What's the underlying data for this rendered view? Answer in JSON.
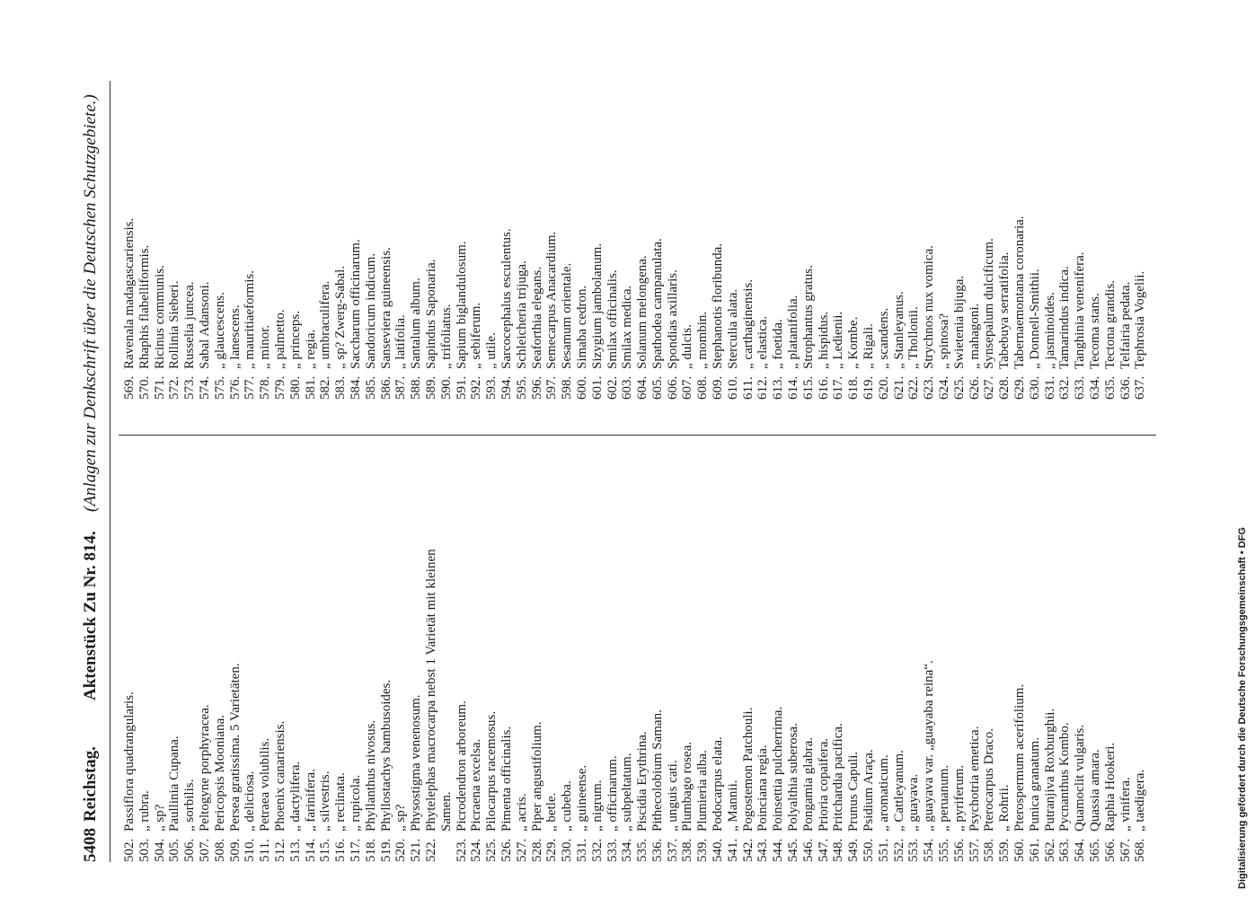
{
  "header": {
    "page_number": "5408",
    "left": "Reichstag.",
    "title": "Aktenstück Zu Nr. 814.",
    "subtitle": "(Anlagen zur Denkschrift über die Deutschen Schutzgebiete.)"
  },
  "columns": [
    {
      "entries": [
        [
          "502.",
          "Passiflora quadrangularis."
        ],
        [
          "503.",
          "„ rubra."
        ],
        [
          "504.",
          "„ sp?"
        ],
        [
          "505.",
          "Paullinia Cupana."
        ],
        [
          "506.",
          "„ sorbilis."
        ],
        [
          "507.",
          "Peltogyne porphyracea."
        ],
        [
          "508.",
          "Pericopsis Mooniana."
        ],
        [
          "509.",
          "Persea gratissima. 5 Varietäten."
        ],
        [
          "510.",
          "„ deliciosa."
        ],
        [
          "511.",
          "Petraea volubilis."
        ],
        [
          "512.",
          "Phoenix canariensis."
        ],
        [
          "513.",
          "„ dactylifera."
        ],
        [
          "514.",
          "„ farinifera."
        ],
        [
          "515.",
          "„ silvestris."
        ],
        [
          "516.",
          "„ reclinata."
        ],
        [
          "517.",
          "„ rupicola."
        ],
        [
          "518.",
          "Phyllanthus nivosus."
        ],
        [
          "519.",
          "Phyllostachys bambusoides."
        ],
        [
          "520.",
          "„ sp?"
        ],
        [
          "521.",
          "Physostigma venenosum."
        ],
        [
          "522.",
          "Phytelephas macrocarpa nebst 1 Varietät mit kleinen",
          "Samen."
        ],
        [
          "523.",
          "Picrodendron arboreum."
        ],
        [
          "524.",
          "Picraena excelsa."
        ],
        [
          "525.",
          "Pilocarpus racemosus."
        ],
        [
          "526.",
          "Pimenta officinalis."
        ],
        [
          "527.",
          "„ acris."
        ],
        [
          "528.",
          "Piper angustifolium."
        ],
        [
          "529.",
          "„ betle."
        ],
        [
          "530.",
          "„ cubeba."
        ],
        [
          "531.",
          "„ guineense."
        ],
        [
          "532.",
          "„ nigrum."
        ],
        [
          "533.",
          "„ officinarum."
        ],
        [
          "534.",
          "„ subpeltatum."
        ],
        [
          "535.",
          "Piscidia Erythrina."
        ],
        [
          "536.",
          "Pithecolobium Saman."
        ],
        [
          "537.",
          "„ unguis cati."
        ],
        [
          "538.",
          "Plumbago rosea."
        ],
        [
          "539.",
          "Plumieria alba."
        ],
        [
          "540.",
          "Podocarpus elata."
        ],
        [
          "541.",
          "„ Mannii."
        ],
        [
          "542.",
          "Pogostemon Patchouli."
        ],
        [
          "543.",
          "Poinciana regia."
        ],
        [
          "544.",
          "Poinsettia pulcherrima."
        ],
        [
          "545.",
          "Polyalthia suberosa."
        ],
        [
          "546.",
          "Pongamia glabra."
        ],
        [
          "547.",
          "Prioria copaifera."
        ],
        [
          "548.",
          "Pritchardia pacifica."
        ],
        [
          "549.",
          "Prunus Capuli."
        ],
        [
          "550.",
          "Psidium Araça."
        ],
        [
          "551.",
          "„ aromaticum."
        ],
        [
          "552.",
          "„ Cattleyanum."
        ],
        [
          "553.",
          "„ guayava."
        ],
        [
          "554.",
          "„ guayava var. „guayaba reina“."
        ],
        [
          "555.",
          "„ peruanum."
        ],
        [
          "556.",
          "„ pyriferum."
        ],
        [
          "557.",
          "Psychotria emetica."
        ],
        [
          "558.",
          "Pterocarpus Draco."
        ],
        [
          "559.",
          "„ Rohrii."
        ],
        [
          "560.",
          "Pterospermum acerifolium."
        ],
        [
          "561.",
          "Punica granatum."
        ],
        [
          "562.",
          "Putranjiva Roxburghii."
        ],
        [
          "563.",
          "Pycnanthus Kombo."
        ],
        [
          "564.",
          "Quamoclit vulgaris."
        ],
        [
          "565.",
          "Quassia amara."
        ],
        [
          "566.",
          "Raphia Hookeri."
        ],
        [
          "567.",
          "„ vinifera."
        ],
        [
          "568.",
          "„ taedigera."
        ]
      ]
    },
    {
      "entries": [
        [
          "569.",
          "Ravenala madagascariensis."
        ],
        [
          "570.",
          "Rhaphis flabelliformis."
        ],
        [
          "571.",
          "Ricinus communis."
        ],
        [
          "572.",
          "Rollinia Sieberi."
        ],
        [
          "573.",
          "Russelia juncea."
        ],
        [
          "574.",
          "Sabal Adansoni."
        ],
        [
          "575.",
          "„ glaucescens."
        ],
        [
          "576.",
          "„ lanescens."
        ],
        [
          "577.",
          "„ mauritiaeformis."
        ],
        [
          "578.",
          "„ minor."
        ],
        [
          "579.",
          "„ palmetto."
        ],
        [
          "580.",
          "„ princeps."
        ],
        [
          "581.",
          "„ regia."
        ],
        [
          "582.",
          "„ umbraculifera."
        ],
        [
          "583.",
          "„ sp? Zwerg-Sabal."
        ],
        [
          "584.",
          "Saccharum officinarum."
        ],
        [
          "585.",
          "Sandoricum indicum."
        ],
        [
          "586.",
          "Sanseviera guineensis."
        ],
        [
          "587.",
          "„ latifolia."
        ],
        [
          "588.",
          "Santalum album."
        ],
        [
          "589.",
          "Sapindus Saponaria."
        ],
        [
          "590.",
          "„ trifoliatus."
        ],
        [
          "591.",
          "Sapium biglandulosum."
        ],
        [
          "592.",
          "„ sebiferum."
        ],
        [
          "593.",
          "„ utile."
        ],
        [
          "594.",
          "Sarcocephalus esculentus."
        ],
        [
          "595.",
          "Schleicheria trijuga."
        ],
        [
          "596.",
          "Seaforthia elegans."
        ],
        [
          "597.",
          "Semecarpus Anacardium."
        ],
        [
          "598.",
          "Sesamum orientale."
        ],
        [
          "600.",
          "Simaba cedron."
        ],
        [
          "601.",
          "Sizygium jambolanum."
        ],
        [
          "602.",
          "Smilax officinalis."
        ],
        [
          "603.",
          "Smilax medica."
        ],
        [
          "604.",
          "Solanum melongena."
        ],
        [
          "605.",
          "Spathodea campanulata."
        ],
        [
          "606.",
          "Spondias axillaris."
        ],
        [
          "607.",
          "„ dulcis."
        ],
        [
          "608.",
          "„ mombin."
        ],
        [
          "609.",
          "Stephanotis floribunda."
        ],
        [
          "610.",
          "Sterculia alata."
        ],
        [
          "611.",
          "„ carthaginensis."
        ],
        [
          "612.",
          "„ elastica."
        ],
        [
          "613.",
          "„ foetida."
        ],
        [
          "614.",
          "„ platanifolia."
        ],
        [
          "615.",
          "Strophantus gratus."
        ],
        [
          "616.",
          "„ hispidus."
        ],
        [
          "617.",
          "„ Ledienii."
        ],
        [
          "618.",
          "„ Kombe."
        ],
        [
          "619.",
          "„ Rigali."
        ],
        [
          "620.",
          "„ scandens."
        ],
        [
          "621.",
          "„ Stanleyanus."
        ],
        [
          "622.",
          "„ Thollonii."
        ],
        [
          "623.",
          "Strychnos nux vomica."
        ],
        [
          "624.",
          "„ spinosa?"
        ],
        [
          "625.",
          "Swietenia bijuga."
        ],
        [
          "626.",
          "„ mahagoni."
        ],
        [
          "627.",
          "Synsepalum dulcificum."
        ],
        [
          "628.",
          "Tabebuya serratifolia."
        ],
        [
          "629.",
          "Tabernaemontana coronaria."
        ],
        [
          "630.",
          "„ Donnell-Smithii."
        ],
        [
          "631.",
          "„ jasminoides."
        ],
        [
          "632.",
          "Tamarindus indica."
        ],
        [
          "633.",
          "Tanghinia venenifera."
        ],
        [
          "634.",
          "Tecoma stans."
        ],
        [
          "635.",
          "Tectona grandis."
        ],
        [
          "636.",
          "Telfairia pedata."
        ],
        [
          "637.",
          "Tephrosia Vogelii."
        ]
      ]
    }
  ],
  "footer_note": "Digitalisierung gefördert durch die Deutsche Forschungsgemeinschaft • DFG"
}
